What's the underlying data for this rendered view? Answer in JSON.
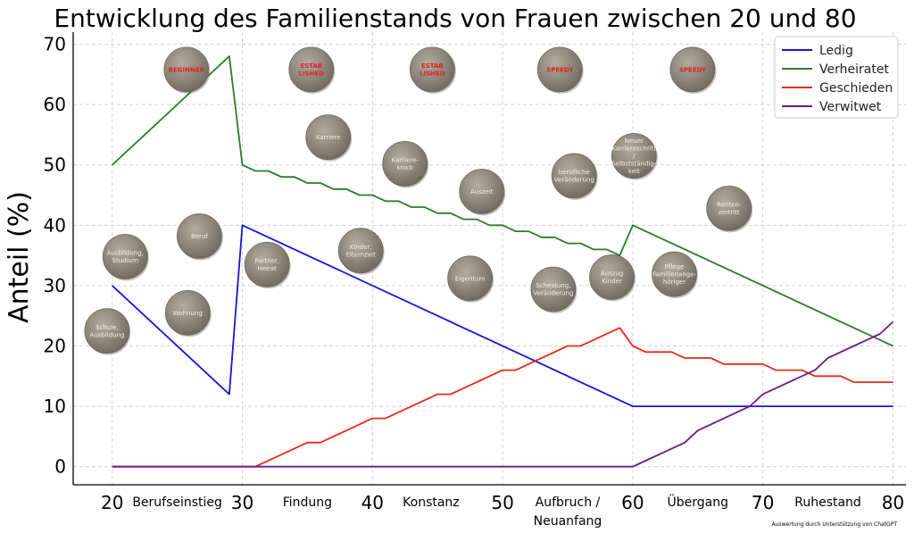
{
  "chart_data": {
    "type": "line",
    "title": "Entwicklung des Familienstands von Frauen zwischen 20 und 80",
    "xlabel": "",
    "ylabel": "Anteil (%)",
    "xlim": [
      17,
      81
    ],
    "ylim": [
      -3,
      72
    ],
    "xticks": [
      20,
      30,
      40,
      50,
      60,
      70,
      80
    ],
    "yticks": [
      0,
      10,
      20,
      30,
      40,
      50,
      60,
      70
    ],
    "grid": true,
    "legend_position": "top-right",
    "series": [
      {
        "name": "Ledig",
        "color": "#1515d8",
        "points": [
          [
            20,
            30
          ],
          [
            29,
            12
          ],
          [
            30,
            40
          ],
          [
            60,
            10
          ],
          [
            80,
            10
          ]
        ]
      },
      {
        "name": "Verheiratet",
        "color": "#2a7d2a",
        "points": [
          [
            20,
            50
          ],
          [
            29,
            68
          ],
          [
            30,
            50
          ],
          [
            31,
            49
          ],
          [
            32,
            49
          ],
          [
            33,
            48
          ],
          [
            34,
            48
          ],
          [
            35,
            47
          ],
          [
            36,
            47
          ],
          [
            37,
            46
          ],
          [
            38,
            46
          ],
          [
            39,
            45
          ],
          [
            40,
            45
          ],
          [
            41,
            44
          ],
          [
            42,
            44
          ],
          [
            43,
            43
          ],
          [
            44,
            43
          ],
          [
            45,
            42
          ],
          [
            46,
            42
          ],
          [
            47,
            41
          ],
          [
            48,
            41
          ],
          [
            49,
            40
          ],
          [
            50,
            40
          ],
          [
            51,
            39
          ],
          [
            52,
            39
          ],
          [
            53,
            38
          ],
          [
            54,
            38
          ],
          [
            55,
            37
          ],
          [
            56,
            37
          ],
          [
            57,
            36
          ],
          [
            58,
            36
          ],
          [
            59,
            35
          ],
          [
            60,
            40
          ],
          [
            80,
            20
          ]
        ]
      },
      {
        "name": "Geschieden",
        "color": "#e8291c",
        "points": [
          [
            20,
            0
          ],
          [
            31,
            0
          ],
          [
            35,
            4
          ],
          [
            36,
            4
          ],
          [
            40,
            8
          ],
          [
            41,
            8
          ],
          [
            45,
            12
          ],
          [
            46,
            12
          ],
          [
            50,
            16
          ],
          [
            51,
            16
          ],
          [
            55,
            20
          ],
          [
            56,
            20
          ],
          [
            59,
            23
          ],
          [
            60,
            20
          ],
          [
            61,
            19
          ],
          [
            63,
            19
          ],
          [
            64,
            18
          ],
          [
            66,
            18
          ],
          [
            67,
            17
          ],
          [
            70,
            17
          ],
          [
            71,
            16
          ],
          [
            73,
            16
          ],
          [
            74,
            15
          ],
          [
            76,
            15
          ],
          [
            77,
            14
          ],
          [
            80,
            14
          ]
        ]
      },
      {
        "name": "Verwitwet",
        "color": "#6a1a86",
        "points": [
          [
            20,
            0
          ],
          [
            60,
            0
          ],
          [
            61,
            1
          ],
          [
            64,
            4
          ],
          [
            65,
            6
          ],
          [
            69,
            10
          ],
          [
            70,
            12
          ],
          [
            74,
            16
          ],
          [
            75,
            18
          ],
          [
            79,
            22
          ],
          [
            80,
            24
          ]
        ]
      }
    ],
    "phases": [
      {
        "label": "Berufseinstieg",
        "x": 25
      },
      {
        "label": "Findung",
        "x": 35
      },
      {
        "label": "Konstanz",
        "x": 44.5
      },
      {
        "label": "Aufbruch /\nNeuanfang",
        "x": 55
      },
      {
        "label": "Übergang",
        "x": 65
      },
      {
        "label": "Ruhestand",
        "x": 75
      }
    ],
    "badges": [
      {
        "label": "Schule,\nAusbildung",
        "x": 19.6,
        "y": 22.5,
        "red": false
      },
      {
        "label": "Ausbildung,\nStudium",
        "x": 21,
        "y": 34.8,
        "red": false
      },
      {
        "label": "Wohnung",
        "x": 25.8,
        "y": 25.5,
        "red": false
      },
      {
        "label": "Beruf",
        "x": 26.7,
        "y": 38.2,
        "red": false
      },
      {
        "label": "Partner,\nHeirat",
        "x": 31.9,
        "y": 33.5,
        "red": false
      },
      {
        "label": "Karriere",
        "x": 36.6,
        "y": 54.6,
        "red": false
      },
      {
        "label": "Kinder,\nElternzeit",
        "x": 39.1,
        "y": 35.8,
        "red": false
      },
      {
        "label": "Karriere-\nknick",
        "x": 42.5,
        "y": 50.2,
        "red": false
      },
      {
        "label": "Eigentum",
        "x": 47.5,
        "y": 31.2,
        "red": false
      },
      {
        "label": "Auszeit",
        "x": 48.4,
        "y": 45.6,
        "red": false
      },
      {
        "label": "Scheidung,\nVeränderung",
        "x": 53.9,
        "y": 29.4,
        "red": false
      },
      {
        "label": "berufliche\nVeränderung",
        "x": 55.5,
        "y": 48.2,
        "red": false
      },
      {
        "label": "Auszug\nKinder",
        "x": 58.4,
        "y": 31.4,
        "red": false
      },
      {
        "label": "Neuer\nKarriereschritt\n/\nSelbstständig-\nkeit",
        "x": 60.1,
        "y": 51.5,
        "red": false
      },
      {
        "label": "Pflege\nFamilienange-\nhöriger",
        "x": 63.2,
        "y": 31.9,
        "red": false
      },
      {
        "label": "Renten-\neintritt",
        "x": 67.4,
        "y": 42.8,
        "red": false
      },
      {
        "label": "BEGINNER",
        "x": 25.7,
        "y": 65.8,
        "red": true
      },
      {
        "label": "ESTAB\nLISHED",
        "x": 35.3,
        "y": 65.8,
        "red": true
      },
      {
        "label": "ESTAB\nLISHED",
        "x": 44.6,
        "y": 65.8,
        "red": true
      },
      {
        "label": "SPEEDY",
        "x": 54.4,
        "y": 65.8,
        "red": true
      },
      {
        "label": "SPEEDY",
        "x": 64.6,
        "y": 65.8,
        "red": true
      }
    ],
    "credit": "Auswertung durch Unterstützung von ChatGPT"
  }
}
